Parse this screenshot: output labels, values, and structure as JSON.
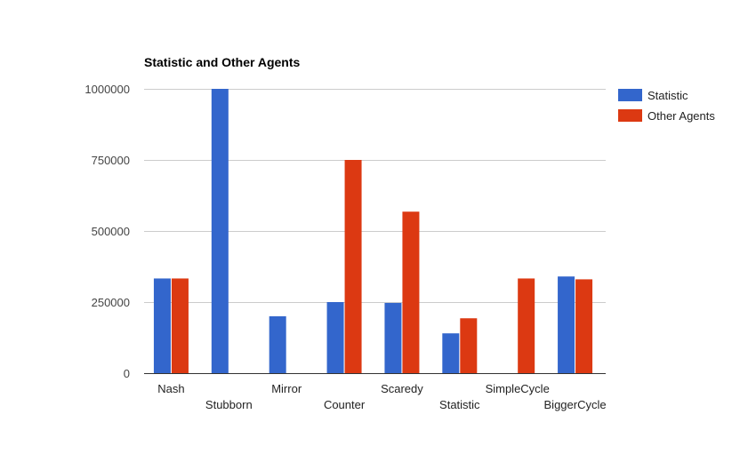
{
  "chart_data": {
    "type": "bar",
    "title": "Statistic and Other Agents",
    "xlabel": "",
    "ylabel": "",
    "categories": [
      "Nash",
      "Stubborn",
      "Mirror",
      "Counter",
      "Scaredy",
      "Statistic",
      "SimpleCycle",
      "BiggerCycle"
    ],
    "series": [
      {
        "name": "Statistic",
        "color": "#3366cc",
        "values": [
          333000,
          1000000,
          200000,
          250000,
          247000,
          140000,
          0,
          340000
        ]
      },
      {
        "name": "Other Agents",
        "color": "#dc3912",
        "values": [
          333000,
          0,
          0,
          750000,
          568000,
          193000,
          333000,
          330000
        ]
      }
    ],
    "ylim": [
      0,
      1000000
    ],
    "yticks": [
      0,
      250000,
      500000,
      750000,
      1000000
    ],
    "ytick_labels": [
      "0",
      "250000",
      "500000",
      "750000",
      "1000000"
    ],
    "grid": true,
    "legend_position": "right"
  }
}
